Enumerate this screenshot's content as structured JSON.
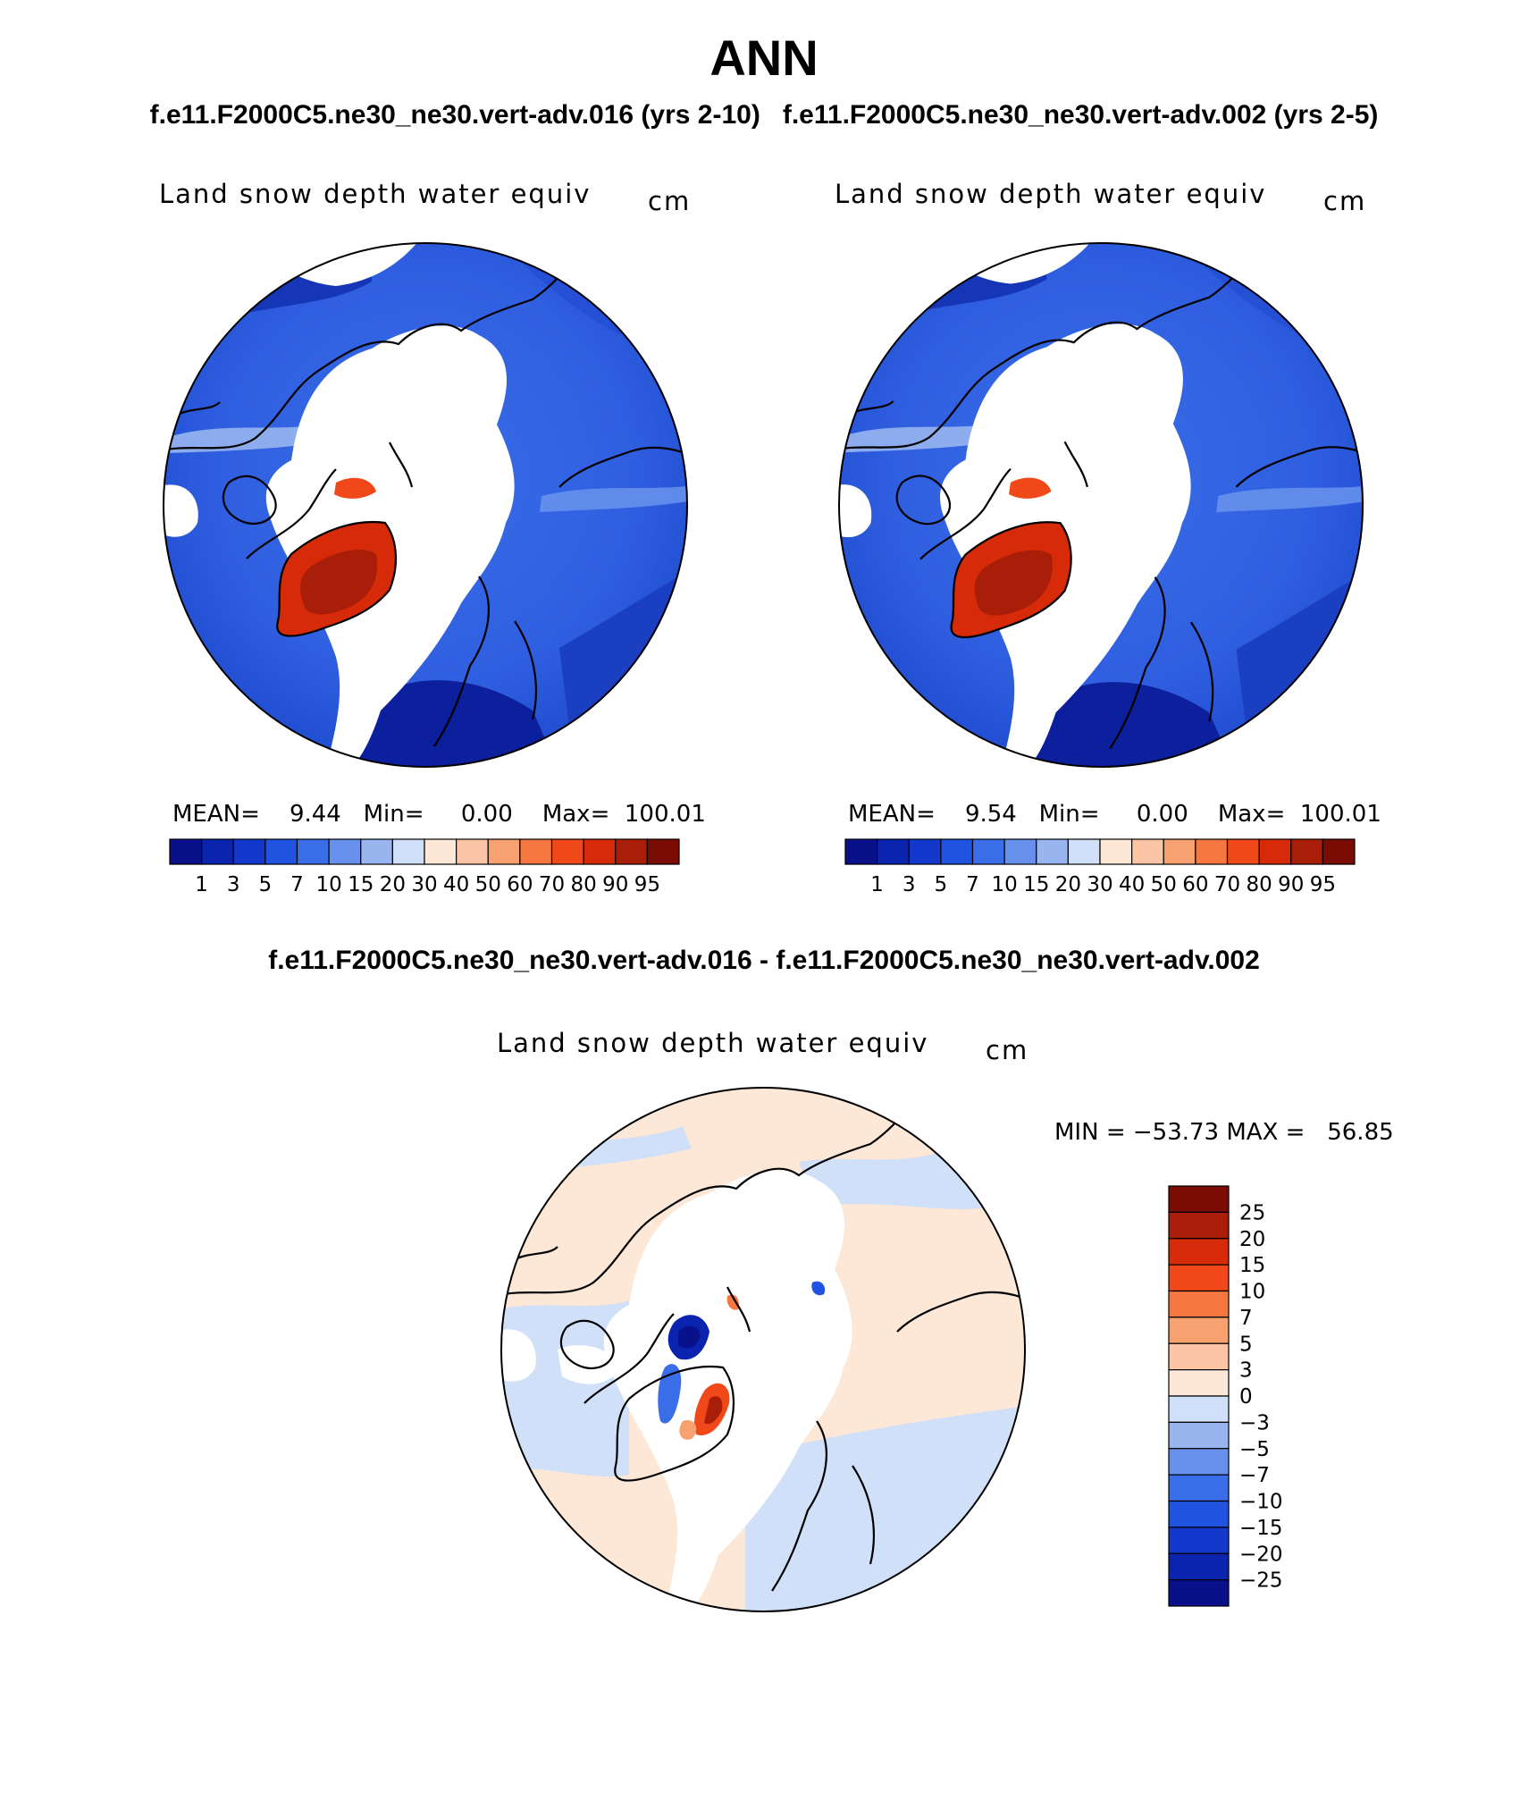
{
  "header": {
    "title": "ANN",
    "case_a": "f.e11.F2000C5.ne30_ne30.vert-adv.016 (yrs 2-10)",
    "case_b": "f.e11.F2000C5.ne30_ne30.vert-adv.002 (yrs 2-5)",
    "diff_title": "f.e11.F2000C5.ne30_ne30.vert-adv.016 - f.e11.F2000C5.ne30_ne30.vert-adv.002"
  },
  "panels": [
    {
      "field": "Land snow depth water equiv",
      "units": "cm",
      "stats_text": "MEAN=    9.44   Min=     0.00    Max=  100.01",
      "mean": 9.44,
      "min": 0.0,
      "max": 100.01
    },
    {
      "field": "Land snow depth water equiv",
      "units": "cm",
      "stats_text": "MEAN=    9.54   Min=     0.00    Max=  100.01",
      "mean": 9.54,
      "min": 0.0,
      "max": 100.01
    },
    {
      "field": "Land snow depth water equiv",
      "units": "cm",
      "stats_text": "MIN = −53.73 MAX =   56.85",
      "min": -53.73,
      "max": 56.85
    }
  ],
  "abs_colorbar": {
    "labels": [
      "1",
      "3",
      "5",
      "7",
      "10",
      "15",
      "20",
      "30",
      "40",
      "50",
      "60",
      "70",
      "80",
      "90",
      "95"
    ],
    "colors": [
      "#08108a",
      "#0a24b0",
      "#1338cc",
      "#1f53e0",
      "#3a6de8",
      "#6690ec",
      "#98b5f0",
      "#cfe0f8",
      "#fde7d6",
      "#fcc6a6",
      "#f7a070",
      "#f77740",
      "#f04818",
      "#d62a08",
      "#a81e08",
      "#7a0c04"
    ]
  },
  "diff_colorbar": {
    "labels_top_to_bottom": [
      "25",
      "20",
      "15",
      "10",
      "7",
      "5",
      "3",
      "0",
      "−3",
      "−5",
      "−7",
      "−10",
      "−15",
      "−20",
      "−25"
    ],
    "colors_top_to_bottom": [
      "#7a0c04",
      "#a81e08",
      "#d62a08",
      "#f04818",
      "#f77740",
      "#f7a070",
      "#fcc6a6",
      "#fde7d6",
      "#cfe0f8",
      "#98b5f0",
      "#6690ec",
      "#3a6de8",
      "#1f53e0",
      "#1338cc",
      "#0a24b0",
      "#08108a"
    ]
  }
}
